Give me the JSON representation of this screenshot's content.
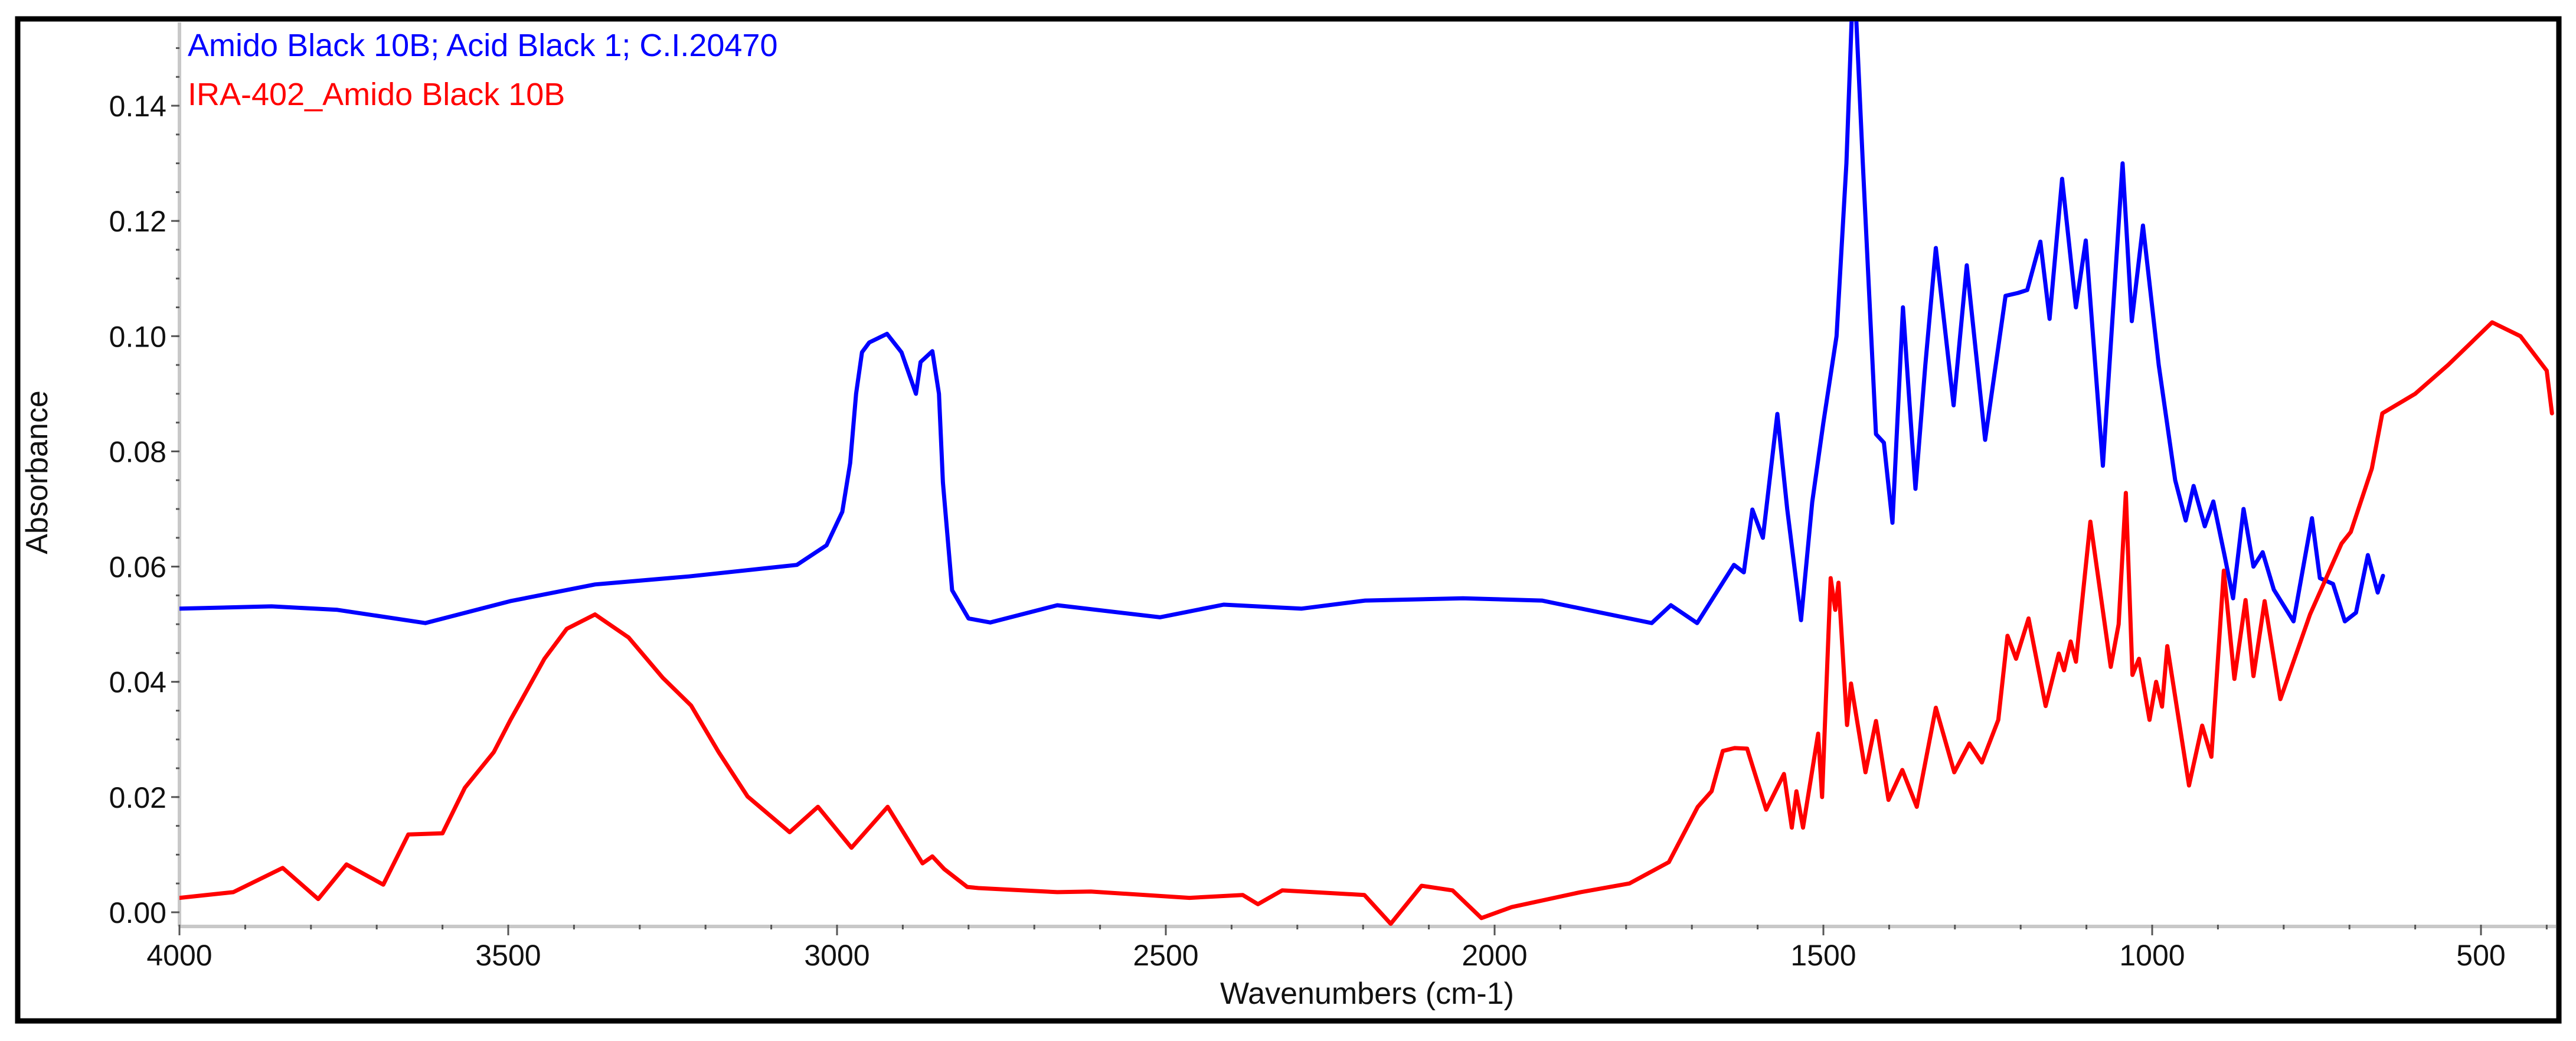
{
  "chart_data": {
    "type": "line",
    "title": "",
    "xlabel": "Wavenumbers (cm-1)",
    "ylabel": "Absorbance",
    "xlim": [
      4000,
      385
    ],
    "ylim": [
      -0.003,
      0.153
    ],
    "x_reversed": true,
    "grid": false,
    "legend_position": "top-left (inside plot)",
    "x_ticks": [
      4000,
      3500,
      3000,
      2500,
      2000,
      1500,
      1000,
      500
    ],
    "x_tick_labels": [
      "4000",
      "3500",
      "3000",
      "2500",
      "2000",
      "1500",
      "1000",
      "500"
    ],
    "y_ticks": [
      0.0,
      0.02,
      0.04,
      0.06,
      0.08,
      0.1,
      0.12,
      0.14
    ],
    "y_tick_labels": [
      "0.00",
      "0.02",
      "0.04",
      "0.06",
      "0.08",
      "0.10",
      "0.12",
      "0.14"
    ],
    "series": [
      {
        "name": "Amido Black 10B; Acid Black 1; C.I.20470",
        "color": "#0000ff",
        "x": [
          4000,
          3860,
          3760,
          3626,
          3497,
          3368,
          3225,
          3110,
          3061,
          3016,
          2992,
          2980,
          2971,
          2962,
          2951,
          2924,
          2902,
          2880,
          2873,
          2855,
          2845,
          2839,
          2825,
          2800,
          2767,
          2665,
          2509,
          2412,
          2294,
          2197,
          2048,
          1928,
          1761,
          1732,
          1692,
          1636,
          1621,
          1608,
          1592,
          1570,
          1555,
          1534,
          1517,
          1500,
          1480,
          1465,
          1457,
          1450,
          1440,
          1420,
          1408,
          1395,
          1379,
          1370,
          1360,
          1345,
          1329,
          1302,
          1282,
          1254,
          1223,
          1204,
          1190,
          1170,
          1156,
          1137,
          1116,
          1101,
          1075,
          1045,
          1031,
          1014,
          990,
          965,
          949,
          937,
          920,
          907,
          890,
          877,
          861,
          846,
          832,
          815,
          785,
          757,
          745,
          725,
          707,
          690,
          672,
          657,
          649
        ],
        "y": [
          0.0527,
          0.0531,
          0.0525,
          0.0502,
          0.054,
          0.0569,
          0.0583,
          0.0597,
          0.0603,
          0.0637,
          0.0695,
          0.078,
          0.09,
          0.0972,
          0.0989,
          0.1004,
          0.0972,
          0.09,
          0.0955,
          0.0974,
          0.09,
          0.0746,
          0.0559,
          0.051,
          0.0503,
          0.0533,
          0.0512,
          0.0534,
          0.0527,
          0.0541,
          0.0545,
          0.0541,
          0.0502,
          0.0533,
          0.0502,
          0.0603,
          0.059,
          0.0699,
          0.065,
          0.0865,
          0.07,
          0.0507,
          0.0712,
          0.085,
          0.1,
          0.13,
          0.155,
          0.155,
          0.13,
          0.083,
          0.0815,
          0.0676,
          0.105,
          0.09,
          0.0735,
          0.095,
          0.1153,
          0.088,
          0.1123,
          0.082,
          0.107,
          0.1075,
          0.108,
          0.1164,
          0.103,
          0.1273,
          0.105,
          0.1166,
          0.0775,
          0.13,
          0.1026,
          0.1192,
          0.095,
          0.075,
          0.068,
          0.074,
          0.067,
          0.0713,
          0.062,
          0.0545,
          0.07,
          0.06,
          0.0625,
          0.056,
          0.0505,
          0.0684,
          0.058,
          0.057,
          0.0505,
          0.052,
          0.062,
          0.0555,
          0.0584
        ]
      },
      {
        "name": "IRA-402_Amido Black 10B",
        "color": "#ff0000",
        "x": [
          4000,
          3918,
          3843,
          3789,
          3746,
          3690,
          3652,
          3600,
          3566,
          3522,
          3497,
          3479,
          3445,
          3411,
          3368,
          3317,
          3265,
          3222,
          3180,
          3136,
          3072,
          3029,
          2978,
          2923,
          2870,
          2855,
          2837,
          2802,
          2785,
          2665,
          2614,
          2464,
          2383,
          2360,
          2323,
          2198,
          2158,
          2111,
          2064,
          2020,
          1974,
          1869,
          1795,
          1735,
          1691,
          1670,
          1653,
          1635,
          1616,
          1587,
          1560,
          1548,
          1541,
          1531,
          1508,
          1502,
          1489,
          1482,
          1477,
          1464,
          1458,
          1436,
          1420,
          1401,
          1380,
          1358,
          1329,
          1301,
          1278,
          1259,
          1234,
          1220,
          1207,
          1188,
          1162,
          1142,
          1134,
          1124,
          1116,
          1094,
          1063,
          1051,
          1040,
          1030,
          1020,
          1004,
          994,
          985,
          977,
          944,
          924,
          910,
          891,
          875,
          858,
          846,
          829,
          805,
          760,
          712,
          698,
          666,
          650,
          600,
          550,
          483,
          440,
          400,
          392
        ],
        "y": [
          0.0025,
          0.0035,
          0.0077,
          0.0023,
          0.0083,
          0.0048,
          0.0135,
          0.0137,
          0.0216,
          0.0278,
          0.0333,
          0.037,
          0.044,
          0.0492,
          0.0517,
          0.0477,
          0.0407,
          0.0359,
          0.0278,
          0.0201,
          0.0139,
          0.0183,
          0.0112,
          0.0183,
          0.0085,
          0.0097,
          0.0075,
          0.0044,
          0.0042,
          0.0035,
          0.0036,
          0.0025,
          0.003,
          0.0014,
          0.0038,
          0.003,
          -0.002,
          0.0046,
          0.0038,
          -0.001,
          0.0009,
          0.0035,
          0.005,
          0.0087,
          0.0183,
          0.021,
          0.028,
          0.0285,
          0.0284,
          0.0178,
          0.024,
          0.0147,
          0.021,
          0.0147,
          0.031,
          0.02,
          0.058,
          0.0525,
          0.0572,
          0.0325,
          0.0397,
          0.0243,
          0.0332,
          0.0195,
          0.0247,
          0.0183,
          0.0355,
          0.0243,
          0.0293,
          0.026,
          0.0334,
          0.048,
          0.044,
          0.051,
          0.0358,
          0.0449,
          0.042,
          0.047,
          0.0435,
          0.0678,
          0.0426,
          0.05,
          0.0728,
          0.0412,
          0.044,
          0.0334,
          0.04,
          0.0357,
          0.0462,
          0.022,
          0.0324,
          0.027,
          0.0593,
          0.0405,
          0.0542,
          0.041,
          0.054,
          0.037,
          0.0517,
          0.064,
          0.066,
          0.077,
          0.0866,
          0.09,
          0.095,
          0.1024,
          0.1,
          0.094,
          0.0866
        ]
      }
    ]
  },
  "legend": {
    "items": [
      {
        "label": "Amido Black 10B; Acid Black 1; C.I.20470",
        "color": "#0000ff"
      },
      {
        "label": "IRA-402_Amido Black 10B",
        "color": "#ff0000"
      }
    ]
  },
  "axes": {
    "x_title": "Wavenumbers (cm-1)",
    "y_title": "Absorbance"
  }
}
